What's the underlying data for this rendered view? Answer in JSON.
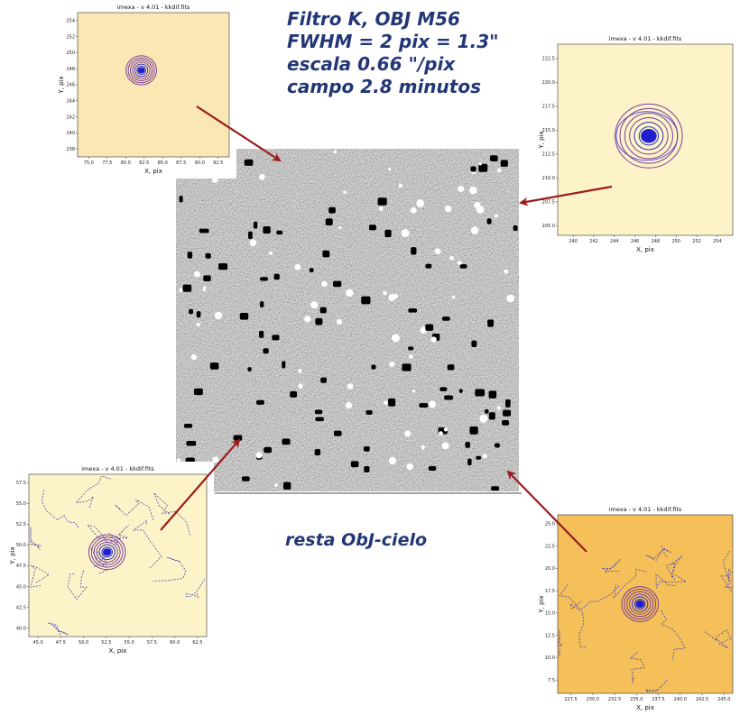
{
  "caption": {
    "lines": [
      "Filtro K, OBJ M56",
      "FWHM =  2 pix = 1.3\"",
      "escala 0.66 \"/pix",
      "campo 2.8 minutos"
    ]
  },
  "subtitle": "resta ObJ-cielo",
  "insets": [
    {
      "title": "imexa - v 4.01 - kkdif.fits",
      "xlabel": "X, pix",
      "ylabel": "Y, pix",
      "xlim": [
        73.5,
        94
      ],
      "ylim": [
        237,
        255
      ],
      "xticks": [
        {
          "value": 75,
          "label": "75.0"
        },
        77.5,
        {
          "value": 80,
          "label": "80.0"
        },
        82.5,
        {
          "value": 85,
          "label": "85.0"
        },
        87.5,
        {
          "value": 90,
          "label": "90.0"
        },
        92.5
      ],
      "yticks": [
        238,
        240,
        242,
        244,
        246,
        248,
        250,
        252,
        254
      ]
    },
    {
      "title": "imexa - v 4.01 - kkdif.fits",
      "xlabel": "X, pix",
      "ylabel": "Y, pix",
      "xlim": [
        238.5,
        255.5
      ],
      "ylim": [
        204,
        224
      ],
      "xticks": [
        240,
        242,
        244,
        246,
        248,
        250,
        252,
        254
      ],
      "yticks": [
        {
          "value": 205,
          "label": "205.0"
        },
        207.5,
        {
          "value": 210,
          "label": "210.0"
        },
        212.5,
        {
          "value": 215,
          "label": "215.0"
        },
        217.5,
        {
          "value": 220,
          "label": "220.0"
        },
        222.5
      ]
    },
    {
      "title": "imexa - v 4.01 - kkdif.fits",
      "xlabel": "X, pix",
      "ylabel": "Y, pix",
      "xlim": [
        44,
        63.5
      ],
      "ylim": [
        39,
        58.5
      ],
      "xticks": [
        {
          "value": 45,
          "label": "45.0"
        },
        47.5,
        {
          "value": 50,
          "label": "50.0"
        },
        52.5,
        {
          "value": 55,
          "label": "55.0"
        },
        57.5,
        {
          "value": 60,
          "label": "60.0"
        },
        62.5
      ],
      "yticks": [
        {
          "value": 40,
          "label": "40.0"
        },
        42.5,
        {
          "value": 45,
          "label": "45.0"
        },
        47.5,
        {
          "value": 50,
          "label": "50.0"
        },
        52.5,
        {
          "value": 55,
          "label": "55.0"
        },
        57.5
      ]
    },
    {
      "title": "imexa - v 4.01 - kkdif.fits",
      "xlabel": "X, pix",
      "ylabel": "Y, pix",
      "xlim": [
        226,
        246
      ],
      "ylim": [
        6,
        26
      ],
      "xticks": [
        227.5,
        {
          "value": 230,
          "label": "230.0"
        },
        232.5,
        {
          "value": 235,
          "label": "235.0"
        },
        237.5,
        {
          "value": 240,
          "label": "240.0"
        },
        242.5,
        {
          "value": 245,
          "label": "245.0"
        }
      ],
      "yticks": [
        7.5,
        {
          "value": 10,
          "label": "10.0"
        },
        12.5,
        {
          "value": 15,
          "label": "15.0"
        },
        17.5,
        {
          "value": 20,
          "label": "20.0"
        },
        22.5,
        {
          "value": 25,
          "label": "25.0"
        }
      ]
    }
  ]
}
